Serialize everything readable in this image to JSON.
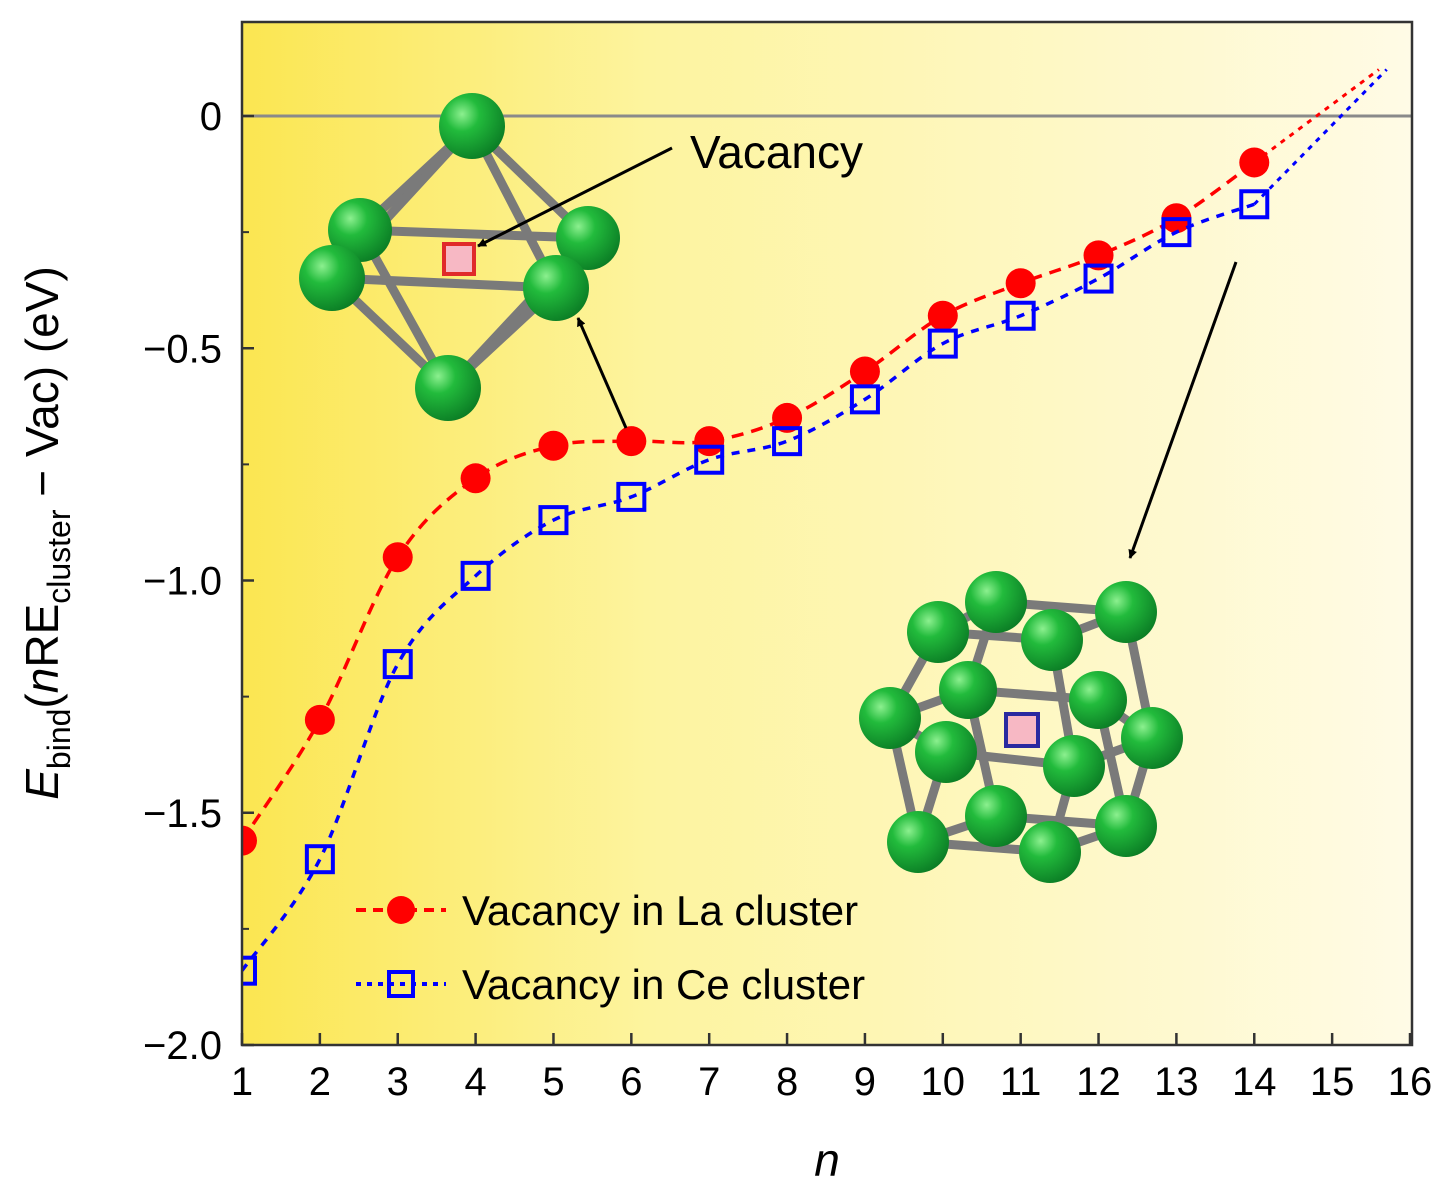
{
  "chart_data": {
    "type": "line",
    "xlabel": "n",
    "ylabel": {
      "prefix": "E",
      "prefix_sub": "bind",
      "open": "(",
      "italic_n": "n",
      "re": "RE",
      "re_sub": "cluster",
      "tail": " − Vac) (eV)"
    },
    "xlim": [
      1,
      16
    ],
    "ylim": [
      -2.0,
      0.2
    ],
    "xticks": [
      "1",
      "2",
      "3",
      "4",
      "5",
      "6",
      "7",
      "8",
      "9",
      "10",
      "11",
      "12",
      "13",
      "14",
      "15",
      "16"
    ],
    "yticks": [
      {
        "value": 0,
        "label": "0"
      },
      {
        "value": -0.5,
        "label": "−0.5"
      },
      {
        "value": -1.0,
        "label": "−1.0"
      },
      {
        "value": -1.5,
        "label": "−1.5"
      },
      {
        "value": -2.0,
        "label": "−2.0"
      }
    ],
    "reference_line": 0,
    "series": [
      {
        "name": "Vacancy in La cluster",
        "color": "#ff0000",
        "marker": "filled-circle",
        "x": [
          1,
          2,
          3,
          4,
          5,
          6,
          7,
          8,
          9,
          10,
          11,
          12,
          13,
          14
        ],
        "values": [
          -1.56,
          -1.3,
          -0.95,
          -0.78,
          -0.71,
          -0.7,
          -0.7,
          -0.65,
          -0.55,
          -0.43,
          -0.36,
          -0.3,
          -0.22,
          -0.1
        ],
        "extrapolated_to": [
          15.6,
          0.1
        ]
      },
      {
        "name": "Vacancy in Ce cluster",
        "color": "#0000ff",
        "marker": "open-square",
        "x": [
          1,
          2,
          3,
          4,
          5,
          6,
          7,
          8,
          9,
          10,
          11,
          12,
          13,
          14
        ],
        "values": [
          -1.84,
          -1.6,
          -1.18,
          -0.99,
          -0.87,
          -0.82,
          -0.74,
          -0.7,
          -0.61,
          -0.49,
          -0.43,
          -0.35,
          -0.25,
          -0.19
        ],
        "extrapolated_to": [
          15.7,
          0.1
        ]
      }
    ],
    "annotations": [
      {
        "text": "Vacancy"
      }
    ],
    "legend_position": "bottom-left",
    "background": "yellow-gradient",
    "atom_color": "#1db53a",
    "vacancy_color": "#f7b8c4"
  }
}
